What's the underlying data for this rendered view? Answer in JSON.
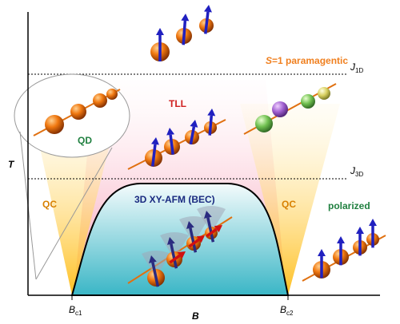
{
  "labels": {
    "paramagnetic": {
      "symbol": "S",
      "rest": "=1 paramagentic"
    },
    "j1d": {
      "main": "J",
      "sub": "1D"
    },
    "j3d": {
      "main": "J",
      "sub": "3D"
    },
    "tll": "TLL",
    "qd": "QD",
    "qc_left": "QC",
    "qc_right": "QC",
    "bec": "3D XY-AFM (BEC)",
    "polarized": "polarized",
    "y_axis": "T",
    "x_axis": "B",
    "bc1": {
      "main": "B",
      "sub": "c1"
    },
    "bc2": {
      "main": "B",
      "sub": "c2"
    }
  }
}
